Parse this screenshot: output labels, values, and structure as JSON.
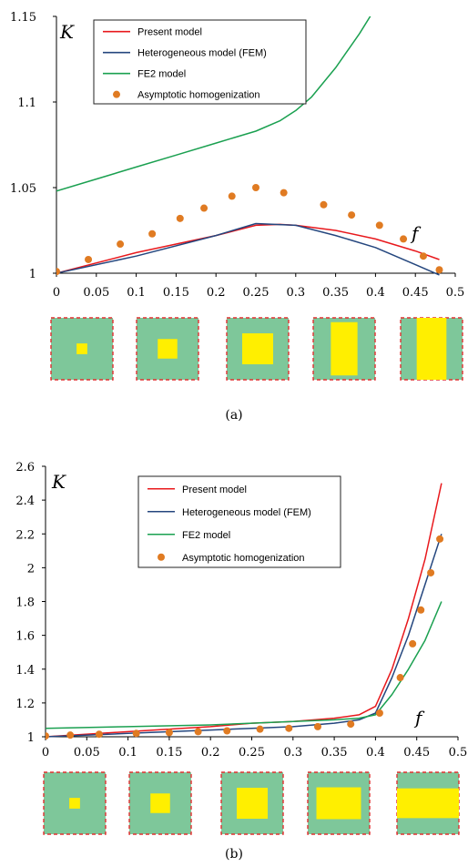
{
  "colors": {
    "present": "#e8181c",
    "fem": "#24467e",
    "fe2": "#1aa050",
    "asym": "#e07b22",
    "cell_bg": "#7ec79a",
    "cell_border": "#e03030",
    "inclusion": "#ffef00"
  },
  "chart_data": [
    {
      "type": "line",
      "caption": "(a)",
      "ylabel": "K",
      "xlabel": "f",
      "xlim": [
        0,
        0.5
      ],
      "ylim": [
        1,
        1.15
      ],
      "x_ticks": [
        "0",
        "0.05",
        "0.1",
        "0.15",
        "0.2",
        "0.25",
        "0.3",
        "0.35",
        "0.4",
        "0.45",
        "0.5"
      ],
      "x_tick_values": [
        0,
        0.05,
        0.1,
        0.15,
        0.2,
        0.25,
        0.3,
        0.35,
        0.4,
        0.45,
        0.5
      ],
      "y_ticks": [
        "1",
        "1.05",
        "1.1",
        "1.15"
      ],
      "y_tick_values": [
        1,
        1.05,
        1.1,
        1.15
      ],
      "legend": {
        "placement": "top-center"
      },
      "series": [
        {
          "name": "Present model",
          "key": "present",
          "kind": "line",
          "x": [
            0,
            0.1,
            0.2,
            0.25,
            0.28,
            0.3,
            0.35,
            0.4,
            0.45,
            0.48
          ],
          "y": [
            1.0,
            1.012,
            1.022,
            1.028,
            1.0285,
            1.028,
            1.025,
            1.02,
            1.013,
            1.008
          ]
        },
        {
          "name": "Heterogeneous model (FEM)",
          "key": "fem",
          "kind": "line",
          "x": [
            0,
            0.1,
            0.2,
            0.25,
            0.3,
            0.35,
            0.4,
            0.45,
            0.48
          ],
          "y": [
            1.0,
            1.01,
            1.022,
            1.029,
            1.028,
            1.022,
            1.015,
            1.005,
            0.999
          ]
        },
        {
          "name": "FE2 model",
          "key": "fe2",
          "kind": "line",
          "x": [
            0,
            0.05,
            0.1,
            0.15,
            0.2,
            0.25,
            0.28,
            0.3,
            0.32,
            0.35,
            0.38,
            0.4
          ],
          "y": [
            1.048,
            1.055,
            1.062,
            1.069,
            1.076,
            1.083,
            1.089,
            1.095,
            1.103,
            1.12,
            1.14,
            1.155
          ]
        },
        {
          "name": "Asymptotic homogenization",
          "key": "asym",
          "kind": "scatter",
          "x": [
            0.0,
            0.04,
            0.08,
            0.12,
            0.155,
            0.185,
            0.22,
            0.25,
            0.285,
            0.335,
            0.37,
            0.405,
            0.435,
            0.46,
            0.48
          ],
          "y": [
            1.001,
            1.008,
            1.017,
            1.023,
            1.032,
            1.038,
            1.045,
            1.05,
            1.047,
            1.04,
            1.034,
            1.028,
            1.02,
            1.01,
            1.002
          ]
        }
      ],
      "cells": [
        0.03,
        0.1,
        0.25,
        0.37,
        0.48
      ]
    },
    {
      "type": "line",
      "caption": "(b)",
      "ylabel": "K",
      "xlabel": "f",
      "xlim": [
        0,
        0.5
      ],
      "ylim": [
        1,
        2.6
      ],
      "x_ticks": [
        "0",
        "0.05",
        "0.1",
        "0.15",
        "0.2",
        "0.25",
        "0.3",
        "0.35",
        "0.4",
        "0.45",
        "0.5"
      ],
      "x_tick_values": [
        0,
        0.05,
        0.1,
        0.15,
        0.2,
        0.25,
        0.3,
        0.35,
        0.4,
        0.45,
        0.5
      ],
      "y_ticks": [
        "1",
        "1.2",
        "1.4",
        "1.6",
        "1.8",
        "2",
        "2.2",
        "2.4",
        "2.6"
      ],
      "y_tick_values": [
        1,
        1.2,
        1.4,
        1.6,
        1.8,
        2,
        2.2,
        2.4,
        2.6
      ],
      "legend": {
        "placement": "top-center"
      },
      "series": [
        {
          "name": "Present model",
          "key": "present",
          "kind": "line",
          "x": [
            0,
            0.1,
            0.2,
            0.25,
            0.3,
            0.35,
            0.38,
            0.4,
            0.42,
            0.44,
            0.46,
            0.48
          ],
          "y": [
            1.0,
            1.03,
            1.06,
            1.08,
            1.09,
            1.11,
            1.13,
            1.18,
            1.4,
            1.7,
            2.05,
            2.5
          ]
        },
        {
          "name": "Heterogeneous model (FEM)",
          "key": "fem",
          "kind": "line",
          "x": [
            0,
            0.1,
            0.2,
            0.25,
            0.3,
            0.35,
            0.38,
            0.4,
            0.42,
            0.44,
            0.46,
            0.48
          ],
          "y": [
            1.0,
            1.02,
            1.04,
            1.05,
            1.06,
            1.08,
            1.1,
            1.14,
            1.35,
            1.6,
            1.9,
            2.2
          ]
        },
        {
          "name": "FE2 model",
          "key": "fe2",
          "kind": "line",
          "x": [
            0,
            0.1,
            0.2,
            0.25,
            0.3,
            0.35,
            0.38,
            0.4,
            0.42,
            0.44,
            0.46,
            0.48
          ],
          "y": [
            1.05,
            1.06,
            1.07,
            1.08,
            1.09,
            1.1,
            1.11,
            1.13,
            1.25,
            1.4,
            1.57,
            1.8
          ]
        },
        {
          "name": "Asymptotic homogenization",
          "key": "asym",
          "kind": "scatter",
          "x": [
            0.0,
            0.03,
            0.065,
            0.11,
            0.15,
            0.185,
            0.22,
            0.26,
            0.295,
            0.33,
            0.37,
            0.405,
            0.43,
            0.445,
            0.455,
            0.467,
            0.478
          ],
          "y": [
            1.005,
            1.01,
            1.015,
            1.02,
            1.025,
            1.03,
            1.035,
            1.045,
            1.05,
            1.06,
            1.075,
            1.14,
            1.35,
            1.55,
            1.75,
            1.97,
            2.17
          ]
        }
      ],
      "cells": [
        0.03,
        0.1,
        0.25,
        0.37,
        0.48
      ]
    }
  ]
}
